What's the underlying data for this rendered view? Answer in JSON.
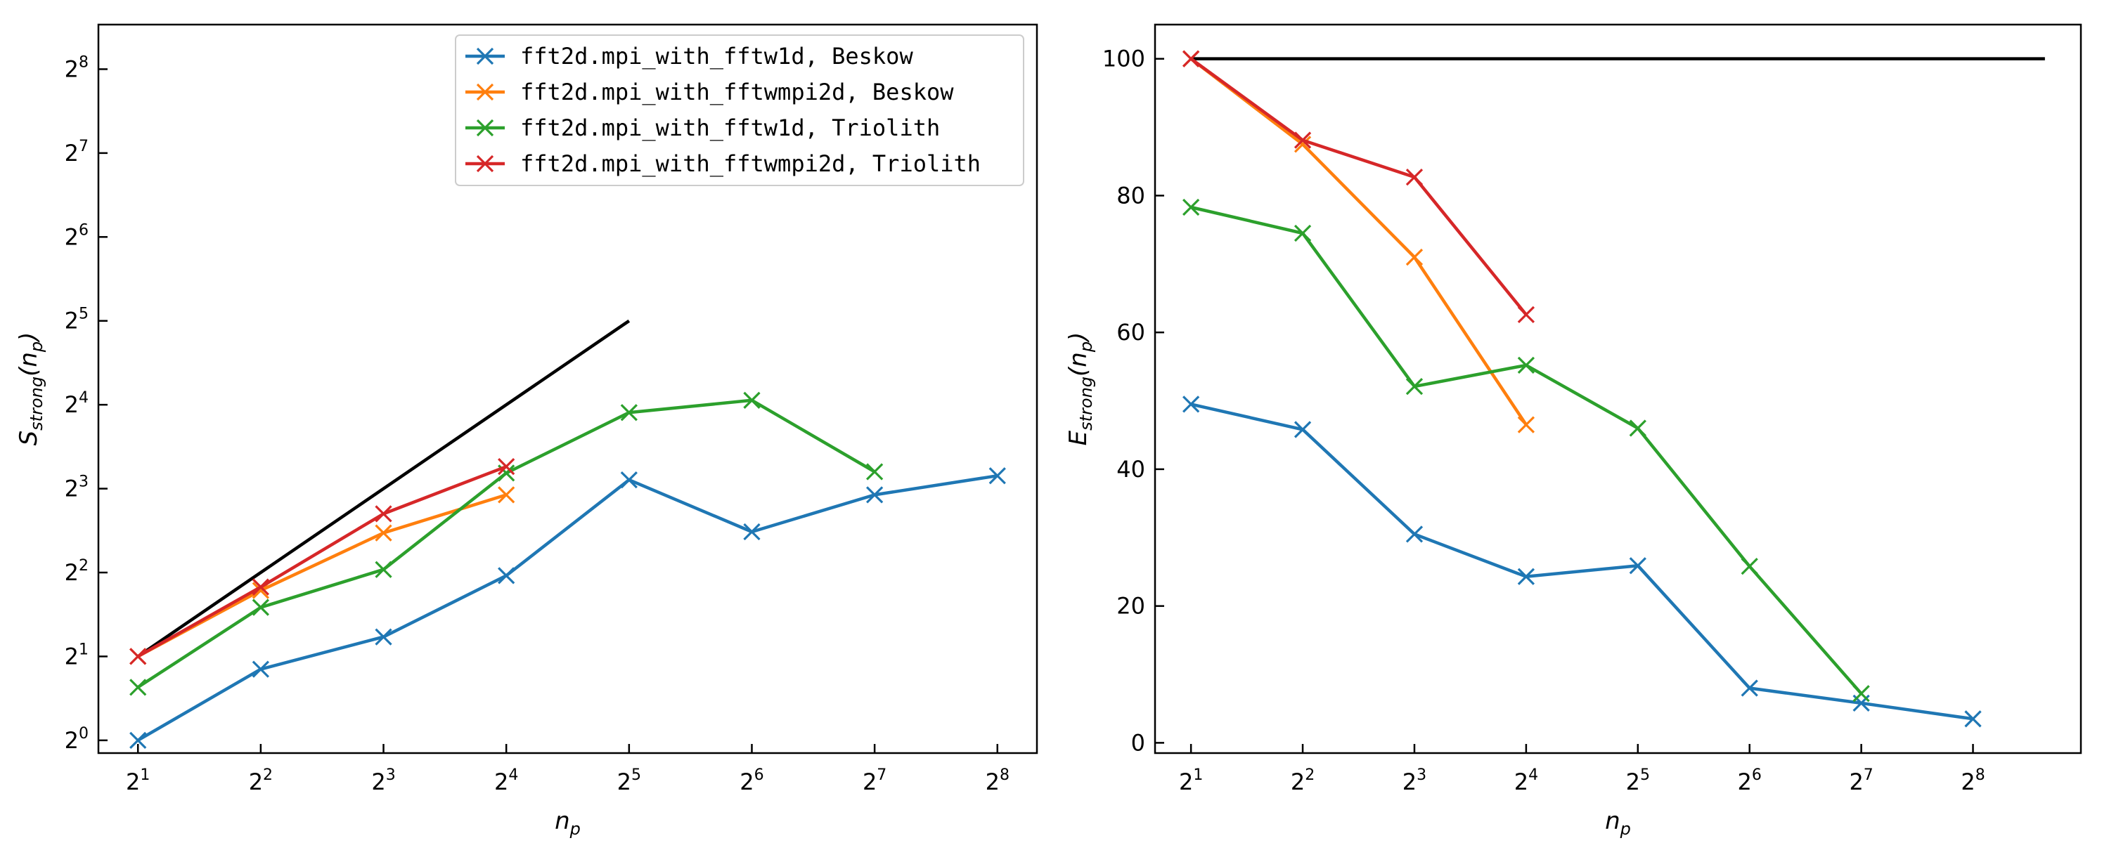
{
  "chart_data": [
    {
      "type": "line",
      "panel": "left",
      "xscale": "log2",
      "yscale": "log2",
      "xlabel": "n",
      "xlabel_sub": "p",
      "ylabel": "S",
      "ylabel_sub": "strong",
      "ylabel_tail": "(n",
      "ylabel_tail_sub": "p",
      "ylabel_close": ")",
      "xticks": [
        2,
        4,
        8,
        16,
        32,
        64,
        128,
        256
      ],
      "xtick_labels": [
        "2^1",
        "2^2",
        "2^3",
        "2^4",
        "2^5",
        "2^6",
        "2^7",
        "2^8"
      ],
      "yticks": [
        1,
        2,
        4,
        8,
        16,
        32,
        64,
        128,
        256
      ],
      "ytick_labels": [
        "2^0",
        "2^1",
        "2^2",
        "2^3",
        "2^4",
        "2^5",
        "2^6",
        "2^7",
        "2^8"
      ],
      "xlim": [
        1.6,
        320
      ],
      "ylim": [
        0.9,
        370
      ],
      "grid": false,
      "legend_position": "top-right",
      "reference_line": {
        "x": [
          2,
          32
        ],
        "y": [
          2,
          32
        ],
        "color": "#000000"
      },
      "series": [
        {
          "name": "fft2d.mpi_with_fftw1d, Beskow",
          "color": "#1f77b4",
          "x": [
            2,
            4,
            8,
            16,
            32,
            64,
            128,
            256
          ],
          "y": [
            1.0,
            1.8,
            2.35,
            3.9,
            8.6,
            5.6,
            7.6,
            8.9
          ]
        },
        {
          "name": "fft2d.mpi_with_fftwmpi2d, Beskow",
          "color": "#ff7f0e",
          "x": [
            2,
            4,
            8,
            16
          ],
          "y": [
            2.0,
            3.45,
            5.55,
            7.6
          ]
        },
        {
          "name": "fft2d.mpi_with_fftw1d, Triolith",
          "color": "#2ca02c",
          "x": [
            2,
            4,
            8,
            16,
            32,
            64,
            128
          ],
          "y": [
            1.55,
            3.0,
            4.1,
            9.1,
            15.0,
            16.6,
            9.2
          ]
        },
        {
          "name": "fft2d.mpi_with_fftwmpi2d, Triolith",
          "color": "#d62728",
          "x": [
            2,
            4,
            8,
            16
          ],
          "y": [
            2.0,
            3.55,
            6.5,
            9.6
          ]
        }
      ]
    },
    {
      "type": "line",
      "panel": "right",
      "xscale": "log2",
      "yscale": "linear",
      "xlabel": "n",
      "xlabel_sub": "p",
      "ylabel": "E",
      "ylabel_sub": "strong",
      "ylabel_tail": "(n",
      "ylabel_tail_sub": "p",
      "ylabel_close": ")",
      "xticks": [
        2,
        4,
        8,
        16,
        32,
        64,
        128,
        256
      ],
      "xtick_labels": [
        "2^1",
        "2^2",
        "2^3",
        "2^4",
        "2^5",
        "2^6",
        "2^7",
        "2^8"
      ],
      "yticks": [
        0,
        20,
        40,
        60,
        80,
        100
      ],
      "ytick_labels": [
        "0",
        "20",
        "40",
        "60",
        "80",
        "100"
      ],
      "xlim": [
        1.6,
        500
      ],
      "ylim": [
        -1.5,
        105
      ],
      "grid": false,
      "reference_line": {
        "x": [
          2,
          400
        ],
        "y": [
          100,
          100
        ],
        "color": "#000000"
      },
      "series": [
        {
          "name": "fft2d.mpi_with_fftw1d, Beskow",
          "color": "#1f77b4",
          "x": [
            2,
            4,
            8,
            16,
            32,
            64,
            128,
            256
          ],
          "y": [
            49.5,
            45.8,
            30.5,
            24.3,
            25.9,
            8.0,
            5.8,
            3.5
          ]
        },
        {
          "name": "fft2d.mpi_with_fftwmpi2d, Beskow",
          "color": "#ff7f0e",
          "x": [
            2,
            4,
            8,
            16
          ],
          "y": [
            100.0,
            87.5,
            71.0,
            46.5
          ]
        },
        {
          "name": "fft2d.mpi_with_fftw1d, Triolith",
          "color": "#2ca02c",
          "x": [
            2,
            4,
            8,
            16,
            32,
            64,
            128
          ],
          "y": [
            78.3,
            74.5,
            52.1,
            55.2,
            46.0,
            25.8,
            7.2
          ]
        },
        {
          "name": "fft2d.mpi_with_fftwmpi2d, Triolith",
          "color": "#d62728",
          "x": [
            2,
            4,
            8,
            16
          ],
          "y": [
            100.0,
            88.1,
            82.7,
            62.6
          ]
        }
      ]
    }
  ]
}
